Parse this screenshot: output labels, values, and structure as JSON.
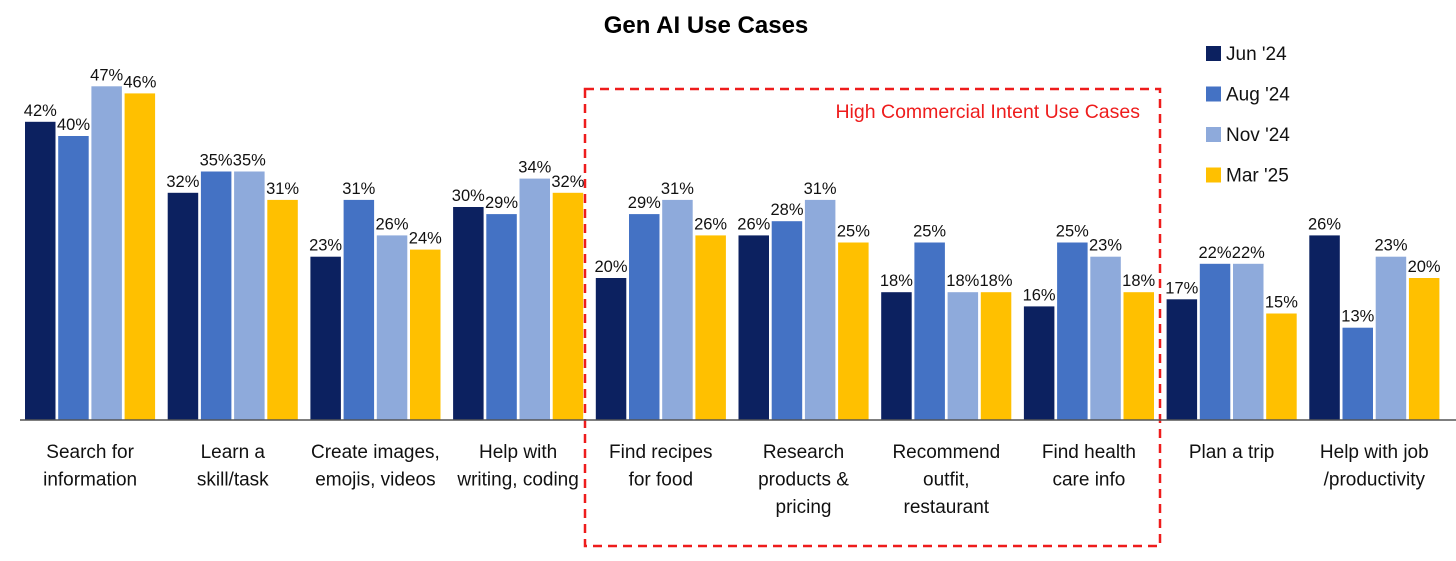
{
  "chart_data": {
    "type": "bar",
    "title": "Gen AI Use Cases",
    "categories": [
      [
        "Search for",
        "information"
      ],
      [
        "Learn a",
        "skill/task"
      ],
      [
        "Create images,",
        "emojis, videos"
      ],
      [
        "Help with",
        "writing, coding"
      ],
      [
        "Find recipes",
        "for food"
      ],
      [
        "Research",
        "products &",
        "pricing"
      ],
      [
        "Recommend",
        "outfit,",
        "restaurant"
      ],
      [
        "Find health",
        "care info"
      ],
      [
        "Plan a trip"
      ],
      [
        "Help with job",
        "/productivity"
      ]
    ],
    "series": [
      {
        "name": "Jun '24",
        "color": "#0c2160",
        "values": [
          42,
          32,
          23,
          30,
          20,
          26,
          18,
          16,
          17,
          26
        ]
      },
      {
        "name": "Aug '24",
        "color": "#4472c4",
        "values": [
          40,
          35,
          31,
          29,
          29,
          28,
          25,
          25,
          22,
          13
        ]
      },
      {
        "name": "Nov '24",
        "color": "#8eaadb",
        "values": [
          47,
          35,
          26,
          34,
          31,
          31,
          18,
          23,
          22,
          23
        ]
      },
      {
        "name": "Mar '25",
        "color": "#ffc000",
        "values": [
          46,
          31,
          24,
          32,
          26,
          25,
          18,
          18,
          15,
          20
        ]
      }
    ],
    "value_suffix": "%",
    "ylim": [
      0,
      50
    ],
    "grid": false,
    "legend_position": "top-right",
    "annotation": {
      "text": "High Commercial Intent Use Cases",
      "color": "#ee1c1c",
      "style": "dashed-box",
      "categories": [
        "Find recipes for food",
        "Research products & pricing",
        "Recommend outfit, restaurant",
        "Find health care info"
      ]
    }
  }
}
